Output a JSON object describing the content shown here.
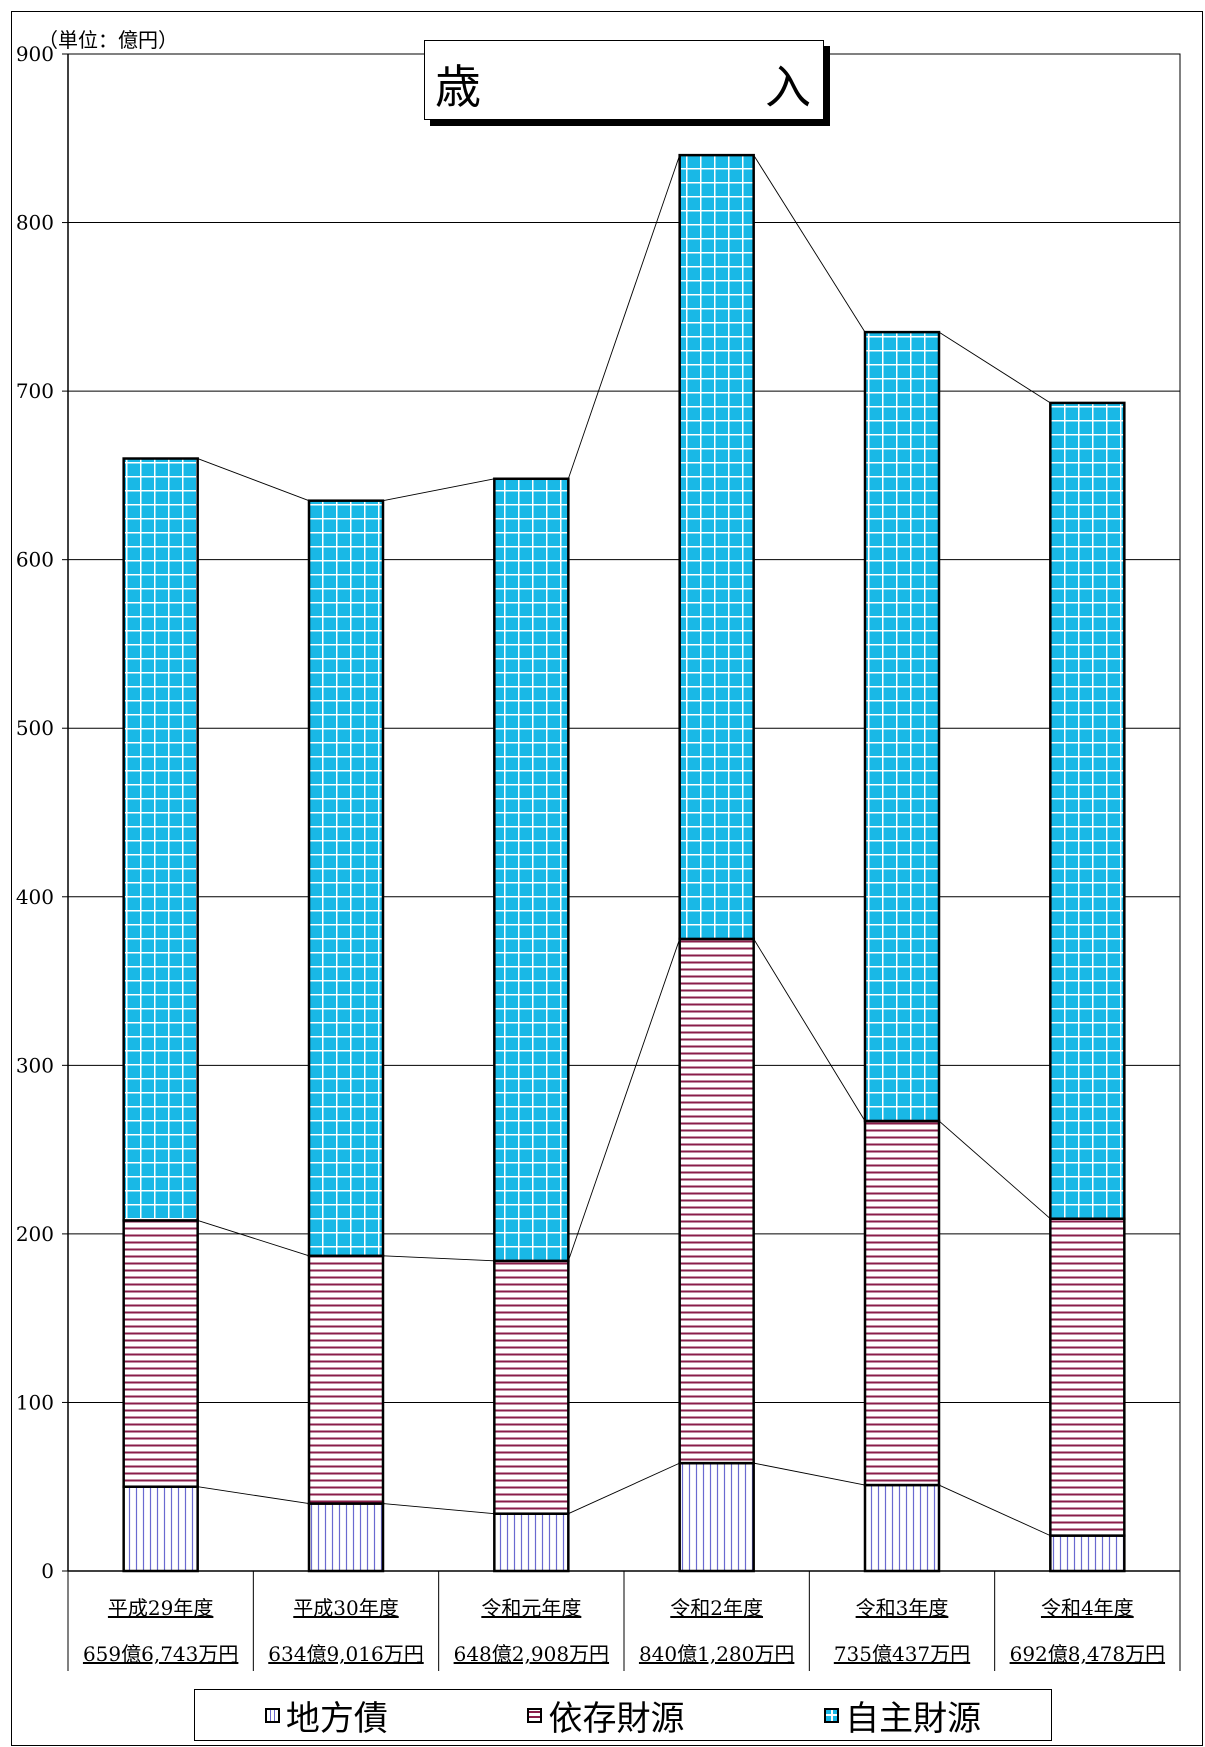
{
  "chart_data": {
    "type": "bar",
    "stacked": true,
    "title": "歳　　　　　入",
    "title_left": "歳",
    "title_right": "入",
    "unit": "（単位：億円）",
    "categories": [
      "平成29年度",
      "平成30年度",
      "令和元年度",
      "令和2年度",
      "令和3年度",
      "令和4年度"
    ],
    "totals": [
      "659億6,743万円",
      "634億9,016万円",
      "648億2,908万円",
      "840億1,280万円",
      "735億437万円",
      "692億8,478万円"
    ],
    "series": [
      {
        "name": "地方債",
        "values": [
          50,
          40,
          34,
          64,
          51,
          21
        ],
        "color": "#6a6ad0",
        "pattern": "vertical-lines"
      },
      {
        "name": "依存財源",
        "values": [
          158,
          147,
          150,
          311,
          216,
          188
        ],
        "color": "#8a1e4a",
        "pattern": "horizontal-lines"
      },
      {
        "name": "自主財源",
        "values": [
          452,
          448,
          464,
          465,
          468,
          484
        ],
        "color": "#19b8e6",
        "pattern": "grid"
      }
    ],
    "ylim": [
      0,
      900
    ],
    "yticks": [
      0,
      100,
      200,
      300,
      400,
      500,
      600,
      700,
      800,
      900
    ],
    "grid": true,
    "connector_lines": true,
    "legend_position": "bottom"
  }
}
